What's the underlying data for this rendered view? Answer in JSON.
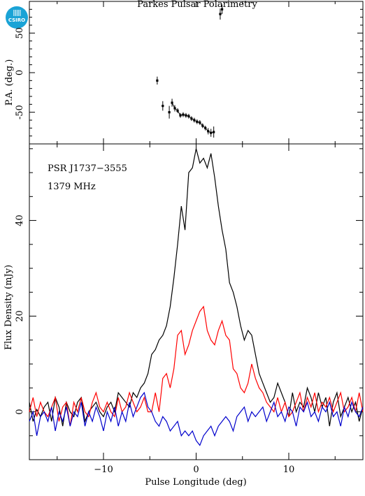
{
  "logo": {
    "text": "CSIRO",
    "color": "#1aa3d6"
  },
  "title": "Parkes Pulsar Polarimetry",
  "chart_data": [
    {
      "type": "scatter",
      "panel": "position-angle",
      "ylabel": "P.A. (deg.)",
      "xlim": [
        -18,
        18
      ],
      "ylim": [
        -90,
        90
      ],
      "yticks": [
        50,
        0,
        -50
      ],
      "x": [
        -4.2,
        -3.6,
        -2.9,
        -2.6,
        -2.3,
        -2.0,
        -1.7,
        -1.4,
        -1.1,
        -0.8,
        -0.5,
        -0.2,
        0.1,
        0.4,
        0.7,
        1.0,
        1.3,
        1.6,
        1.9,
        2.6,
        2.8
      ],
      "y": [
        -10,
        -42,
        -50,
        -38,
        -45,
        -48,
        -54,
        -53,
        -54,
        -55,
        -58,
        -60,
        -62,
        -63,
        -67,
        -70,
        -74,
        -76,
        -75,
        74,
        80
      ],
      "err": [
        5,
        6,
        8,
        5,
        4,
        3,
        3,
        3,
        3,
        3,
        3,
        3,
        3,
        3,
        3,
        3,
        4,
        5,
        7,
        7,
        6
      ]
    },
    {
      "type": "line",
      "panel": "profile",
      "ylabel": "Flux Density (mJy)",
      "xlabel": "Pulse Longitude (deg)",
      "xlim": [
        -18,
        18
      ],
      "ylim": [
        -10,
        56
      ],
      "xticks": [
        -10,
        0,
        10
      ],
      "yticks": [
        0,
        20,
        40
      ],
      "annotations": [
        "PSR J1737−3555",
        "1379 MHz"
      ],
      "x": [
        -18.0,
        -17.6,
        -17.2,
        -16.8,
        -16.4,
        -16.0,
        -15.6,
        -15.2,
        -14.8,
        -14.4,
        -14.0,
        -13.6,
        -13.2,
        -12.8,
        -12.4,
        -12.0,
        -11.6,
        -11.2,
        -10.8,
        -10.4,
        -10.0,
        -9.6,
        -9.2,
        -8.8,
        -8.4,
        -8.0,
        -7.6,
        -7.2,
        -6.8,
        -6.4,
        -6.0,
        -5.6,
        -5.2,
        -4.8,
        -4.4,
        -4.0,
        -3.6,
        -3.2,
        -2.8,
        -2.4,
        -2.0,
        -1.6,
        -1.2,
        -0.8,
        -0.4,
        0.0,
        0.4,
        0.8,
        1.2,
        1.6,
        2.0,
        2.4,
        2.8,
        3.2,
        3.6,
        4.0,
        4.4,
        4.8,
        5.2,
        5.6,
        6.0,
        6.4,
        6.8,
        7.2,
        7.6,
        8.0,
        8.4,
        8.8,
        9.2,
        9.6,
        10.0,
        10.4,
        10.8,
        11.2,
        11.6,
        12.0,
        12.4,
        12.8,
        13.2,
        13.6,
        14.0,
        14.4,
        14.8,
        15.2,
        15.6,
        16.0,
        16.4,
        16.8,
        17.2,
        17.6,
        18.0
      ],
      "series": [
        {
          "color": "#000000",
          "values": [
            2.0,
            -2.0,
            0.5,
            -1.0,
            1.0,
            2.0,
            -2.0,
            3.0,
            1.0,
            -3.0,
            2.0,
            0.0,
            -1.0,
            2.0,
            3.0,
            -2.0,
            0.0,
            1.0,
            2.0,
            0.0,
            -1.0,
            1.0,
            2.0,
            0.0,
            4.0,
            3.0,
            2.0,
            1.0,
            4.0,
            3.0,
            5.0,
            6.0,
            8.0,
            12.0,
            13.0,
            15.0,
            16.0,
            18.0,
            22.0,
            28.0,
            35.0,
            43.0,
            38.0,
            50.0,
            51.0,
            55.0,
            52.0,
            53.0,
            51.0,
            54.0,
            49.0,
            43.0,
            38.0,
            34.0,
            27.0,
            25.0,
            22.0,
            18.0,
            15.0,
            17.0,
            16.0,
            12.0,
            8.0,
            6.0,
            4.0,
            2.0,
            3.0,
            6.0,
            4.0,
            2.0,
            -1.0,
            4.0,
            0.0,
            2.0,
            1.0,
            5.0,
            3.0,
            0.0,
            4.0,
            1.0,
            3.0,
            -3.0,
            2.0,
            4.0,
            -1.0,
            1.0,
            3.0,
            0.0,
            2.0,
            -2.0,
            1.0
          ]
        },
        {
          "color": "#ff0000",
          "values": [
            0.0,
            3.0,
            -1.0,
            2.0,
            0.0,
            -1.0,
            1.0,
            3.0,
            -2.0,
            1.0,
            2.0,
            -3.0,
            2.0,
            0.0,
            3.0,
            0.0,
            -1.0,
            2.0,
            4.0,
            1.0,
            0.0,
            2.0,
            0.0,
            -1.0,
            3.0,
            0.0,
            1.0,
            4.0,
            2.0,
            0.0,
            1.0,
            3.0,
            0.0,
            0.0,
            4.0,
            0.0,
            7.0,
            8.0,
            5.0,
            9.0,
            16.0,
            17.0,
            12.0,
            14.0,
            17.0,
            19.0,
            21.0,
            22.0,
            17.0,
            15.0,
            14.0,
            17.0,
            19.0,
            16.0,
            15.0,
            9.0,
            8.0,
            5.0,
            4.0,
            6.0,
            10.0,
            7.0,
            5.0,
            4.0,
            2.0,
            1.0,
            0.0,
            3.0,
            0.0,
            2.0,
            -1.0,
            0.0,
            2.0,
            4.0,
            0.0,
            3.0,
            1.0,
            4.0,
            0.0,
            2.0,
            1.0,
            3.0,
            0.0,
            2.0,
            4.0,
            0.0,
            1.0,
            3.0,
            0.0,
            4.0,
            0.0
          ]
        },
        {
          "color": "#0000cc",
          "values": [
            -2.0,
            0.0,
            -5.0,
            -1.0,
            0.0,
            -2.0,
            1.0,
            -4.0,
            0.0,
            -2.0,
            1.0,
            -3.0,
            0.0,
            -1.0,
            2.0,
            -3.0,
            0.0,
            -2.0,
            1.0,
            -1.0,
            -4.0,
            0.0,
            -2.0,
            1.0,
            -3.0,
            0.0,
            -2.0,
            2.0,
            -1.0,
            1.0,
            3.0,
            4.0,
            1.0,
            0.0,
            -2.0,
            -3.0,
            -1.0,
            -2.0,
            -4.0,
            -3.0,
            -2.0,
            -5.0,
            -4.0,
            -5.0,
            -4.0,
            -6.0,
            -7.0,
            -5.0,
            -4.0,
            -3.0,
            -5.0,
            -3.0,
            -2.0,
            -1.0,
            -2.0,
            -4.0,
            -1.0,
            0.0,
            1.0,
            -2.0,
            0.0,
            -1.0,
            0.0,
            1.0,
            -2.0,
            0.0,
            2.0,
            -1.0,
            0.0,
            -2.0,
            1.0,
            0.0,
            -3.0,
            1.0,
            0.0,
            2.0,
            -1.0,
            0.0,
            -2.0,
            1.0,
            0.0,
            2.0,
            -1.0,
            0.0,
            -3.0,
            1.0,
            -1.0,
            2.0,
            0.0,
            -1.0,
            1.0
          ]
        }
      ]
    }
  ]
}
